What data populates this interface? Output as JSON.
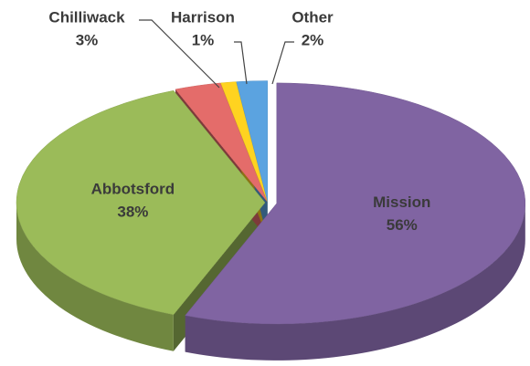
{
  "chart_data": {
    "type": "pie",
    "categories": [
      "Mission",
      "Abbotsford",
      "Chilliwack",
      "Harrison",
      "Other"
    ],
    "values": [
      56,
      38,
      3,
      1,
      2
    ],
    "value_labels": [
      "56%",
      "38%",
      "3%",
      "1%",
      "2%"
    ],
    "colors": [
      "#8064a2",
      "#9bbb59",
      "#e46c6a",
      "#ffd320",
      "#5ba3e0"
    ]
  }
}
